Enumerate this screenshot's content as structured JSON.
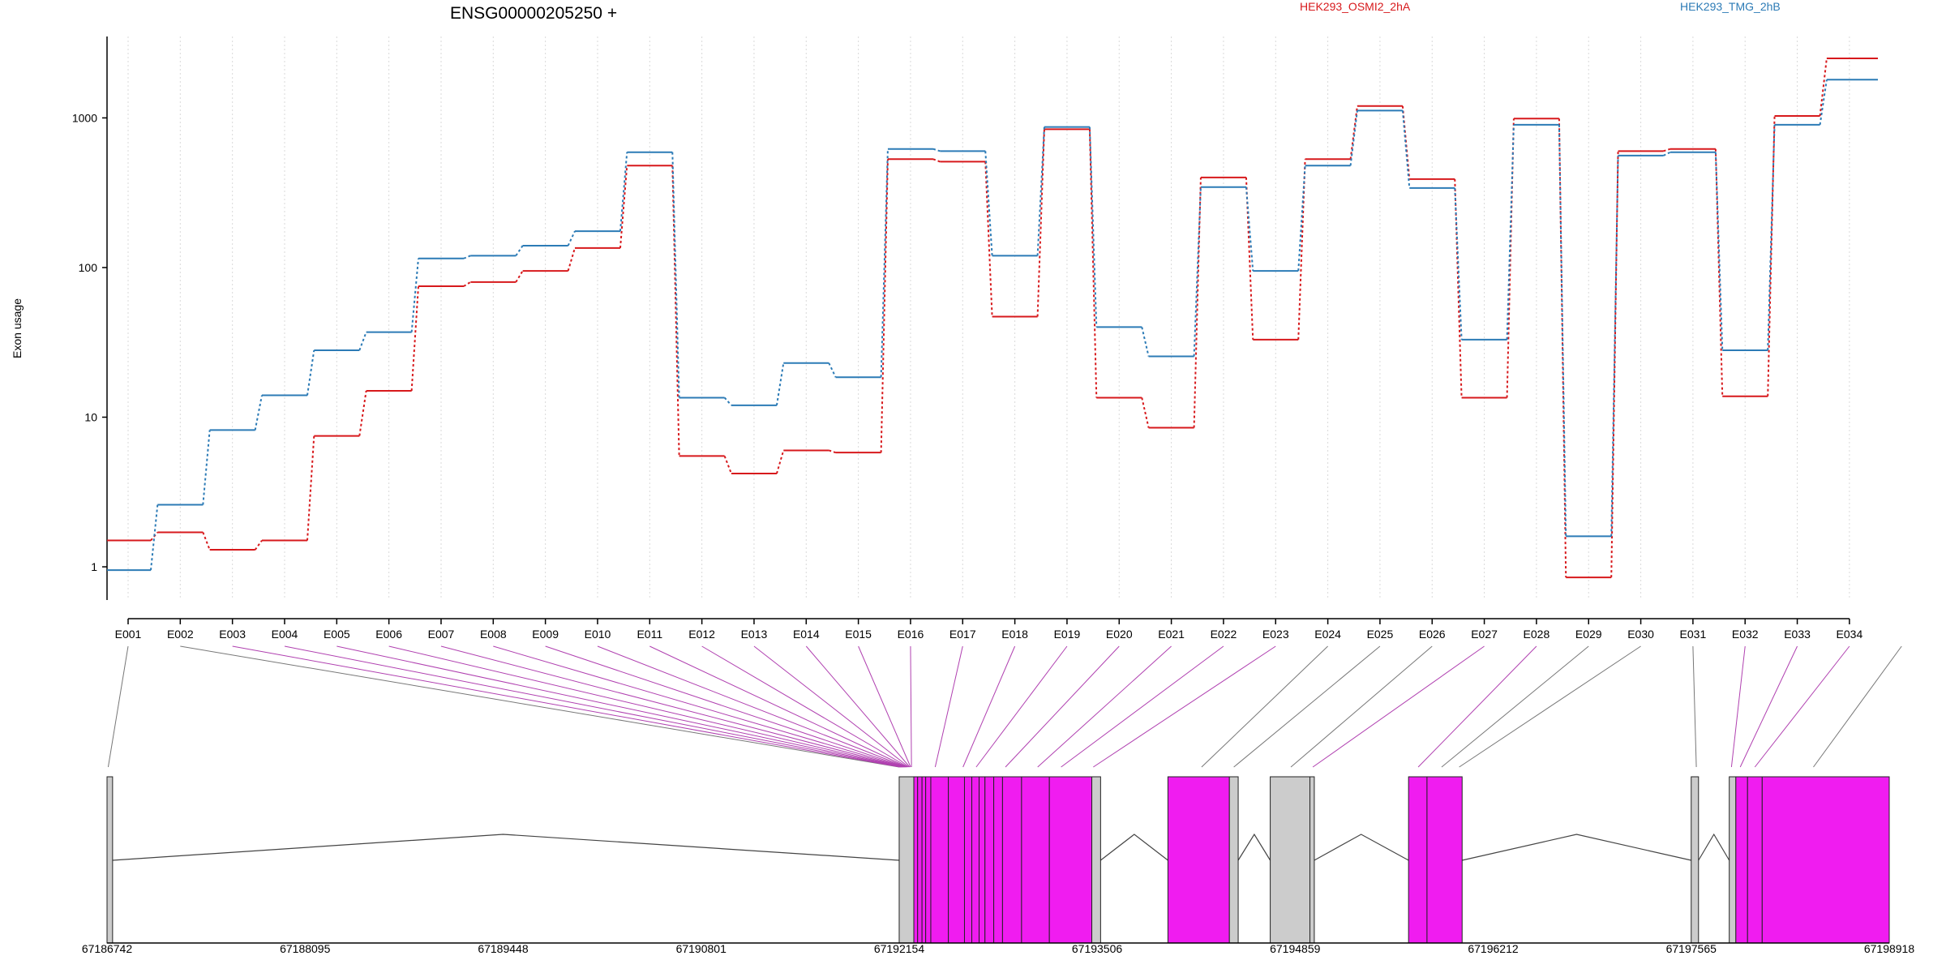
{
  "chart_data": {
    "type": "line",
    "title": "ENSG00000205250 +",
    "ylabel": "Exon usage",
    "xlabel": "",
    "yscale": "log",
    "ylim": [
      0.6,
      3500
    ],
    "y_ticks": [
      1,
      10,
      100,
      1000
    ],
    "grid": "vertical dotted lines at each exon",
    "legend_placement": "top-right",
    "categories": [
      "E001",
      "E002",
      "E003",
      "E004",
      "E005",
      "E006",
      "E007",
      "E008",
      "E009",
      "E010",
      "E011",
      "E012",
      "E013",
      "E014",
      "E015",
      "E016",
      "E017",
      "E018",
      "E019",
      "E020",
      "E021",
      "E022",
      "E023",
      "E024",
      "E025",
      "E026",
      "E027",
      "E028",
      "E029",
      "E030",
      "E031",
      "E032",
      "E033",
      "E034"
    ],
    "series": [
      {
        "name": "HEK293_OSMI2_2hA",
        "color": "#d7191c",
        "values": [
          1.5,
          1.7,
          1.3,
          1.5,
          7.5,
          15,
          75,
          80,
          95,
          135,
          480,
          5.5,
          4.2,
          6,
          5.8,
          530,
          510,
          47,
          840,
          13.5,
          8.5,
          400,
          33,
          530,
          1200,
          390,
          13.5,
          990,
          0.85,
          600,
          620,
          13.8,
          1030,
          2500
        ]
      },
      {
        "name": "HEK293_TMG_2hB",
        "color": "#2c7bb6",
        "values": [
          0.95,
          2.6,
          8.2,
          14,
          28,
          37,
          115,
          120,
          140,
          175,
          590,
          13.5,
          12,
          23,
          18.5,
          620,
          600,
          120,
          870,
          40,
          25.5,
          345,
          95,
          480,
          1120,
          340,
          33,
          900,
          1.6,
          560,
          590,
          28,
          900,
          1800
        ]
      }
    ],
    "gene_model": {
      "coordinate_ticks": [
        "67186742",
        "67188095",
        "67189448",
        "67190801",
        "67192154",
        "67193506",
        "67194859",
        "67196212",
        "67197565",
        "67198918"
      ],
      "range": [
        67186742,
        67198918
      ],
      "exon_bins": [
        [
          67186742,
          67186780
        ],
        [
          67192154,
          67192254
        ],
        [
          67192254,
          67192280
        ],
        [
          67192280,
          67192310
        ],
        [
          67192310,
          67192335
        ],
        [
          67192335,
          67192370
        ],
        [
          67192370,
          67192490
        ],
        [
          67192490,
          67192600
        ],
        [
          67192600,
          67192650
        ],
        [
          67192650,
          67192700
        ],
        [
          67192700,
          67192740
        ],
        [
          67192740,
          67192800
        ],
        [
          67192800,
          67192860
        ],
        [
          67192860,
          67192990
        ],
        [
          67192990,
          67193180
        ],
        [
          67193180,
          67193470
        ],
        [
          67193470,
          67193530
        ],
        [
          67193990,
          67194410
        ],
        [
          67194410,
          67194470
        ],
        [
          67194689,
          67194960
        ],
        [
          67194960,
          67194990
        ],
        [
          67195634,
          67195760
        ],
        [
          67195760,
          67196000
        ],
        [
          67197565,
          67197615
        ],
        [
          67197825,
          67197870
        ],
        [
          67197870,
          67197950
        ],
        [
          67197950,
          67198050
        ],
        [
          67198050,
          67198918
        ]
      ],
      "exon_link_positions": [
        67186750,
        67192154,
        67192160,
        67192166,
        67192172,
        67192178,
        67192184,
        67192190,
        67192196,
        67192202,
        67192208,
        67192214,
        67192220,
        67192226,
        67192232,
        67192238,
        67192400,
        67192590,
        67192680,
        67192880,
        67193100,
        67193260,
        67193480,
        67194220,
        67194440,
        67194830,
        67194980,
        67195700,
        67195860,
        67195980,
        67197600,
        67197840,
        67197900,
        67198000,
        67198400
      ],
      "introns": [
        [
          67186780,
          67192154,
          67189448
        ],
        [
          67193530,
          67193990,
          67193760
        ],
        [
          67194470,
          67194689,
          67194580
        ],
        [
          67194990,
          67195634,
          67195310
        ],
        [
          67196000,
          67197565,
          67196782
        ],
        [
          67197615,
          67197825,
          67197720
        ]
      ],
      "highlight_color": "#f01cf0",
      "exon_color": "#cccccc",
      "highlighted_exons": [
        "E003",
        "E004",
        "E005",
        "E006",
        "E007",
        "E008",
        "E009",
        "E010",
        "E011",
        "E012",
        "E013",
        "E014",
        "E015",
        "E016",
        "E017",
        "E018",
        "E019",
        "E020",
        "E021",
        "E022",
        "E023",
        "E027",
        "E028",
        "E032",
        "E033",
        "E034"
      ]
    }
  }
}
